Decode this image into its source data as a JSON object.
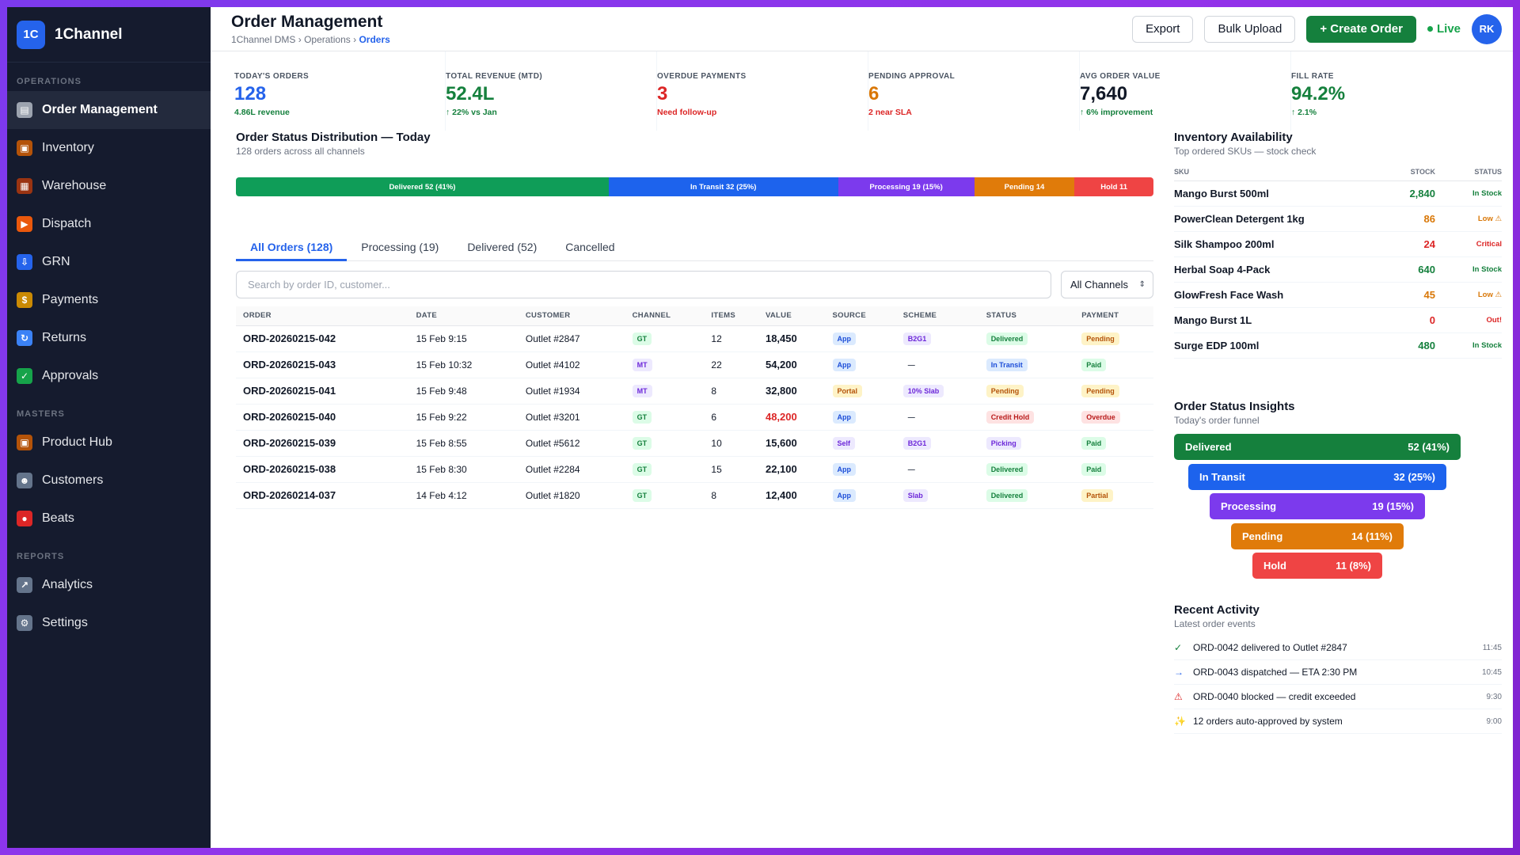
{
  "brand": {
    "logo": "1C",
    "name": "1Channel"
  },
  "sidebar": {
    "sections": [
      {
        "label": "OPERATIONS",
        "items": [
          {
            "label": "Order Management",
            "icon": "clipboard-icon",
            "glyph": "▤",
            "color": "#9ca3af",
            "active": true
          },
          {
            "label": "Inventory",
            "icon": "box-icon",
            "glyph": "▣",
            "color": "#b45309"
          },
          {
            "label": "Warehouse",
            "icon": "factory-icon",
            "glyph": "▦",
            "color": "#9a3412"
          },
          {
            "label": "Dispatch",
            "icon": "truck-icon",
            "glyph": "▶",
            "color": "#ea580c"
          },
          {
            "label": "GRN",
            "icon": "inbox-tray-icon",
            "glyph": "⇩",
            "color": "#2563eb"
          },
          {
            "label": "Payments",
            "icon": "money-bag-icon",
            "glyph": "$",
            "color": "#ca8a04"
          },
          {
            "label": "Returns",
            "icon": "refresh-icon",
            "glyph": "↻",
            "color": "#3b82f6"
          },
          {
            "label": "Approvals",
            "icon": "check-box-icon",
            "glyph": "✓",
            "color": "#16a34a"
          }
        ]
      },
      {
        "label": "MASTERS",
        "items": [
          {
            "label": "Product Hub",
            "icon": "package-icon",
            "glyph": "▣",
            "color": "#b45309"
          },
          {
            "label": "Customers",
            "icon": "users-icon",
            "glyph": "☻",
            "color": "#64748b"
          },
          {
            "label": "Beats",
            "icon": "map-pin-icon",
            "glyph": "●",
            "color": "#dc2626"
          }
        ]
      },
      {
        "label": "REPORTS",
        "items": [
          {
            "label": "Analytics",
            "icon": "chart-icon",
            "glyph": "↗",
            "color": "#64748b"
          },
          {
            "label": "Settings",
            "icon": "gear-icon",
            "glyph": "⚙",
            "color": "#64748b"
          }
        ]
      }
    ]
  },
  "header": {
    "title": "Order Management",
    "breadcrumb": [
      "1Channel DMS",
      "Operations",
      "Orders"
    ],
    "export_label": "Export",
    "bulk_label": "Bulk Upload",
    "create_label": "+ Create Order",
    "live_label": "Live",
    "avatar": "RK"
  },
  "kpis": [
    {
      "label": "TODAY'S ORDERS",
      "value": "128",
      "sub": "4.86L revenue",
      "value_color": "#2563eb",
      "sub_color": "#15803d"
    },
    {
      "label": "TOTAL REVENUE (MTD)",
      "value": "52.4L",
      "sub": "↑ 22% vs Jan",
      "value_color": "#15803d",
      "sub_color": "#15803d"
    },
    {
      "label": "OVERDUE PAYMENTS",
      "value": "3",
      "sub": "Need follow-up",
      "value_color": "#dc2626",
      "sub_color": "#dc2626"
    },
    {
      "label": "PENDING APPROVAL",
      "value": "6",
      "sub": "2 near SLA",
      "value_color": "#d97706",
      "sub_color": "#dc2626"
    },
    {
      "label": "AVG ORDER VALUE",
      "value": "7,640",
      "sub": "↑ 6% improvement",
      "value_color": "#111827",
      "sub_color": "#15803d"
    },
    {
      "label": "FILL RATE",
      "value": "94.2%",
      "sub": "↑ 2.1%",
      "value_color": "#15803d",
      "sub_color": "#15803d"
    }
  ],
  "status_dist": {
    "title": "Order Status Distribution — Today",
    "subtitle": "128 orders across all channels",
    "segments": [
      {
        "label": "Delivered 52 (41%)",
        "value": 52,
        "color": "#0f9d58"
      },
      {
        "label": "In Transit 32 (25%)",
        "value": 32,
        "color": "#1d63ed"
      },
      {
        "label": "Processing 19 (15%)",
        "value": 19,
        "color": "#7c3aed"
      },
      {
        "label": "Pending 14",
        "value": 14,
        "color": "#e07b0a"
      },
      {
        "label": "Hold 11",
        "value": 11,
        "color": "#ef4444"
      }
    ]
  },
  "tabs": [
    {
      "label": "All Orders (128)",
      "active": true
    },
    {
      "label": "Processing (19)"
    },
    {
      "label": "Delivered (52)"
    },
    {
      "label": "Cancelled"
    }
  ],
  "search": {
    "placeholder": "Search by order ID, customer..."
  },
  "channel_filter": "All Channels",
  "orders": {
    "columns": [
      "ORDER",
      "DATE",
      "CUSTOMER",
      "CHANNEL",
      "ITEMS",
      "VALUE",
      "SOURCE",
      "SCHEME",
      "STATUS",
      "PAYMENT"
    ],
    "rows": [
      {
        "order": "ORD-20260215-042",
        "date": "15 Feb 9:15",
        "customer": "Outlet #2847",
        "channel": "GT",
        "items": "12",
        "value": "18,450",
        "source": "App",
        "scheme": "B2G1",
        "status": "Delivered",
        "payment": "Pending"
      },
      {
        "order": "ORD-20260215-043",
        "date": "15 Feb 10:32",
        "customer": "Outlet #4102",
        "channel": "MT",
        "items": "22",
        "value": "54,200",
        "source": "App",
        "scheme": "—",
        "status": "In Transit",
        "payment": "Paid"
      },
      {
        "order": "ORD-20260215-041",
        "date": "15 Feb 9:48",
        "customer": "Outlet #1934",
        "channel": "MT",
        "items": "8",
        "value": "32,800",
        "source": "Portal",
        "scheme": "10% Slab",
        "status": "Pending",
        "payment": "Pending"
      },
      {
        "order": "ORD-20260215-040",
        "date": "15 Feb 9:22",
        "customer": "Outlet #3201",
        "channel": "GT",
        "items": "6",
        "value": "48,200",
        "source": "App",
        "scheme": "—",
        "status": "Credit Hold",
        "payment": "Overdue",
        "value_alert": true
      },
      {
        "order": "ORD-20260215-039",
        "date": "15 Feb 8:55",
        "customer": "Outlet #5612",
        "channel": "GT",
        "items": "10",
        "value": "15,600",
        "source": "Self",
        "scheme": "B2G1",
        "status": "Picking",
        "payment": "Paid"
      },
      {
        "order": "ORD-20260215-038",
        "date": "15 Feb 8:30",
        "customer": "Outlet #2284",
        "channel": "GT",
        "items": "15",
        "value": "22,100",
        "source": "App",
        "scheme": "—",
        "status": "Delivered",
        "payment": "Paid"
      },
      {
        "order": "ORD-20260214-037",
        "date": "14 Feb 4:12",
        "customer": "Outlet #1820",
        "channel": "GT",
        "items": "8",
        "value": "12,400",
        "source": "App",
        "scheme": "Slab",
        "status": "Delivered",
        "payment": "Partial"
      }
    ]
  },
  "inventory": {
    "title": "Inventory Availability",
    "subtitle": "Top ordered SKUs — stock check",
    "columns": [
      "SKU",
      "STOCK",
      "STATUS"
    ],
    "rows": [
      {
        "sku": "Mango Burst 500ml",
        "stock": "2,840",
        "status": "In Stock",
        "color": "#15803d"
      },
      {
        "sku": "PowerClean Detergent 1kg",
        "stock": "86",
        "status": "Low ⚠",
        "color": "#d97706"
      },
      {
        "sku": "Silk Shampoo 200ml",
        "stock": "24",
        "status": "Critical",
        "color": "#dc2626"
      },
      {
        "sku": "Herbal Soap 4-Pack",
        "stock": "640",
        "status": "In Stock",
        "color": "#15803d"
      },
      {
        "sku": "GlowFresh Face Wash",
        "stock": "45",
        "status": "Low ⚠",
        "color": "#d97706"
      },
      {
        "sku": "Mango Burst 1L",
        "stock": "0",
        "status": "Out!",
        "color": "#dc2626"
      },
      {
        "sku": "Surge EDP 100ml",
        "stock": "480",
        "status": "In Stock",
        "color": "#15803d"
      }
    ]
  },
  "insights": {
    "title": "Order Status Insights",
    "subtitle": "Today's order funnel",
    "bars": [
      {
        "label": "Delivered",
        "value": "52 (41%)",
        "color": "#15803d"
      },
      {
        "label": "In Transit",
        "value": "32 (25%)",
        "color": "#1d63ed"
      },
      {
        "label": "Processing",
        "value": "19 (15%)",
        "color": "#7c3aed"
      },
      {
        "label": "Pending",
        "value": "14 (11%)",
        "color": "#e07b0a"
      },
      {
        "label": "Hold",
        "value": "11 (8%)",
        "color": "#ef4444"
      }
    ]
  },
  "activity": {
    "title": "Recent Activity",
    "subtitle": "Latest order events",
    "items": [
      {
        "icon": "check-icon",
        "glyph": "✓",
        "color": "#15803d",
        "text": "ORD-0042 delivered to Outlet #2847",
        "time": "11:45"
      },
      {
        "icon": "arrow-right-icon",
        "glyph": "→",
        "color": "#2563eb",
        "text": "ORD-0043 dispatched — ETA 2:30 PM",
        "time": "10:45"
      },
      {
        "icon": "warning-icon",
        "glyph": "⚠",
        "color": "#dc2626",
        "text": "ORD-0040 blocked — credit exceeded",
        "time": "9:30"
      },
      {
        "icon": "sparkle-icon",
        "glyph": "✨",
        "color": "#ca8a04",
        "text": "12 orders auto-approved by system",
        "time": "9:00"
      }
    ]
  }
}
